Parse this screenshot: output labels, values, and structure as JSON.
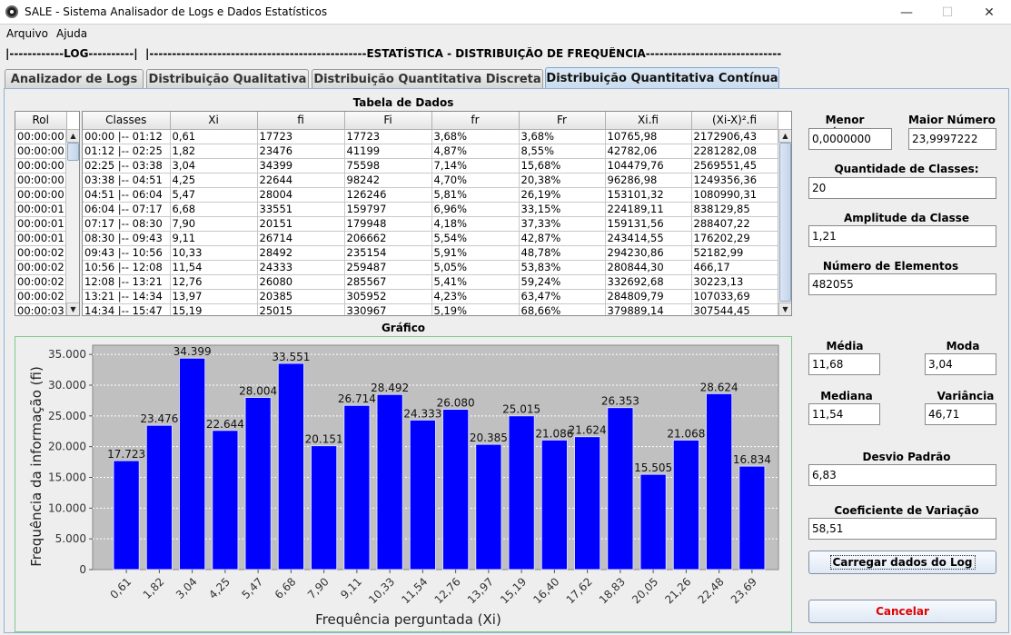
{
  "window": {
    "title": "SALE - Sistema Analisador de Logs e Dados Estatísticos",
    "minimize": "—",
    "maximize": "☐",
    "close": "✕"
  },
  "menu": {
    "items": [
      "Arquivo",
      "Ajuda"
    ]
  },
  "header": {
    "log": "|------------LOG----------|",
    "stats": "|------------------------------------------------ESTATÍSTICA - DISTRIBUIÇÃO DE FREQUÊNCIA-----------------------------------------------|"
  },
  "tabs": [
    {
      "label": "Analizador de Logs",
      "active": false
    },
    {
      "label": "Distribuição Qualitativa",
      "active": false
    },
    {
      "label": "Distribuição Quantitativa Discreta",
      "active": false
    },
    {
      "label": "Distribuição Quantitativa Contínua",
      "active": true
    }
  ],
  "data_table": {
    "title": "Tabela de Dados",
    "rol_header": "Rol",
    "rol": [
      "00:00:00",
      "00:00:00",
      "00:00:00",
      "00:00:00",
      "00:00:00",
      "00:00:01",
      "00:00:01",
      "00:00:01",
      "00:00:02",
      "00:00:02",
      "00:00:02",
      "00:00:02",
      "00:00:03"
    ],
    "columns": [
      "Classes",
      "Xi",
      "fi",
      "Fi",
      "fr",
      "Fr",
      "Xi.fi",
      "(Xi-X)².fi"
    ],
    "rows": [
      [
        "00:00 |-- 01:12",
        "0,61",
        "17723",
        "17723",
        "3,68%",
        "3,68%",
        "10765,98",
        "2172906,43"
      ],
      [
        "01:12 |-- 02:25",
        "1,82",
        "23476",
        "41199",
        "4,87%",
        "8,55%",
        "42782,06",
        "2281282,08"
      ],
      [
        "02:25 |-- 03:38",
        "3,04",
        "34399",
        "75598",
        "7,14%",
        "15,68%",
        "104479,76",
        "2569551,45"
      ],
      [
        "03:38 |-- 04:51",
        "4,25",
        "22644",
        "98242",
        "4,70%",
        "20,38%",
        "96286,98",
        "1249356,36"
      ],
      [
        "04:51 |-- 06:04",
        "5,47",
        "28004",
        "126246",
        "5,81%",
        "26,19%",
        "153101,32",
        "1080990,31"
      ],
      [
        "06:04 |-- 07:17",
        "6,68",
        "33551",
        "159797",
        "6,96%",
        "33,15%",
        "224189,11",
        "838129,85"
      ],
      [
        "07:17 |-- 08:30",
        "7,90",
        "20151",
        "179948",
        "4,18%",
        "37,33%",
        "159131,56",
        "288407,22"
      ],
      [
        "08:30 |-- 09:43",
        "9,11",
        "26714",
        "206662",
        "5,54%",
        "42,87%",
        "243414,55",
        "176202,29"
      ],
      [
        "09:43 |-- 10:56",
        "10,33",
        "28492",
        "235154",
        "5,91%",
        "48,78%",
        "294230,86",
        "52182,99"
      ],
      [
        "10:56 |-- 12:08",
        "11,54",
        "24333",
        "259487",
        "5,05%",
        "53,83%",
        "280844,30",
        "466,17"
      ],
      [
        "12:08 |-- 13:21",
        "12,76",
        "26080",
        "285567",
        "5,41%",
        "59,24%",
        "332692,68",
        "30223,13"
      ],
      [
        "13:21 |-- 14:34",
        "13,97",
        "20385",
        "305952",
        "4,23%",
        "63,47%",
        "284809,79",
        "107033,69"
      ],
      [
        "14:34 |-- 15:47",
        "15,19",
        "25015",
        "330967",
        "5,19%",
        "68,66%",
        "379889,14",
        "307544,45"
      ]
    ]
  },
  "chart_section": {
    "title": "Gráfico"
  },
  "chart_data": {
    "type": "bar",
    "categories": [
      "0,61",
      "1,82",
      "3,04",
      "4,25",
      "5,47",
      "6,68",
      "7,90",
      "9,11",
      "10,33",
      "11,54",
      "12,76",
      "13,97",
      "15,19",
      "16,40",
      "17,62",
      "18,83",
      "20,05",
      "21,26",
      "22,48",
      "23,69"
    ],
    "values": [
      17723,
      23476,
      34399,
      22644,
      28004,
      33551,
      20151,
      26714,
      28492,
      24333,
      26080,
      20385,
      25015,
      21086,
      21624,
      26353,
      15505,
      21068,
      28624,
      16834
    ],
    "value_labels": [
      "17.723",
      "23.476",
      "34.399",
      "22.644",
      "28.004",
      "33.551",
      "20.151",
      "26.714",
      "28.492",
      "24.333",
      "26.080",
      "20.385",
      "25.015",
      "21.086",
      "21.624",
      "26.353",
      "15.505",
      "21.068",
      "28.624",
      "16.834"
    ],
    "title": "",
    "xlabel": "Frequência perguntada (Xi)",
    "ylabel": "Frequência da informação (fi)",
    "ylim": [
      0,
      36500
    ],
    "yticks": [
      0,
      5000,
      10000,
      15000,
      20000,
      25000,
      30000,
      35000
    ],
    "ytick_labels": [
      "0",
      "5.000",
      "10.000",
      "15.000",
      "20.000",
      "25.000",
      "30.000",
      "35.000"
    ],
    "grid": true,
    "bar_color": "#0000ff",
    "plot_bg": "#c0c0c0"
  },
  "stats": {
    "menor_label": "Menor Número",
    "menor": "0,0000000",
    "maior_label": "Maior Número",
    "maior": "23,9997222",
    "classes_label": "Quantidade de Classes:",
    "classes": "20",
    "amplitude_label": "Amplitude da Classe",
    "amplitude": "1,21",
    "elementos_label": "Número de Elementos",
    "elementos": "482055",
    "media_label": "Média",
    "media": "11,68",
    "moda_label": "Moda",
    "moda": "3,04",
    "mediana_label": "Mediana",
    "mediana": "11,54",
    "variancia_label": "Variância",
    "variancia": "46,71",
    "desvio_label": "Desvio Padrão",
    "desvio": "6,83",
    "coef_label": "Coeficiente de Variação",
    "coef": "58,51"
  },
  "buttons": {
    "load": "Carregar dados do Log",
    "cancel": "Cancelar",
    "cancel_color": "#e00000"
  }
}
